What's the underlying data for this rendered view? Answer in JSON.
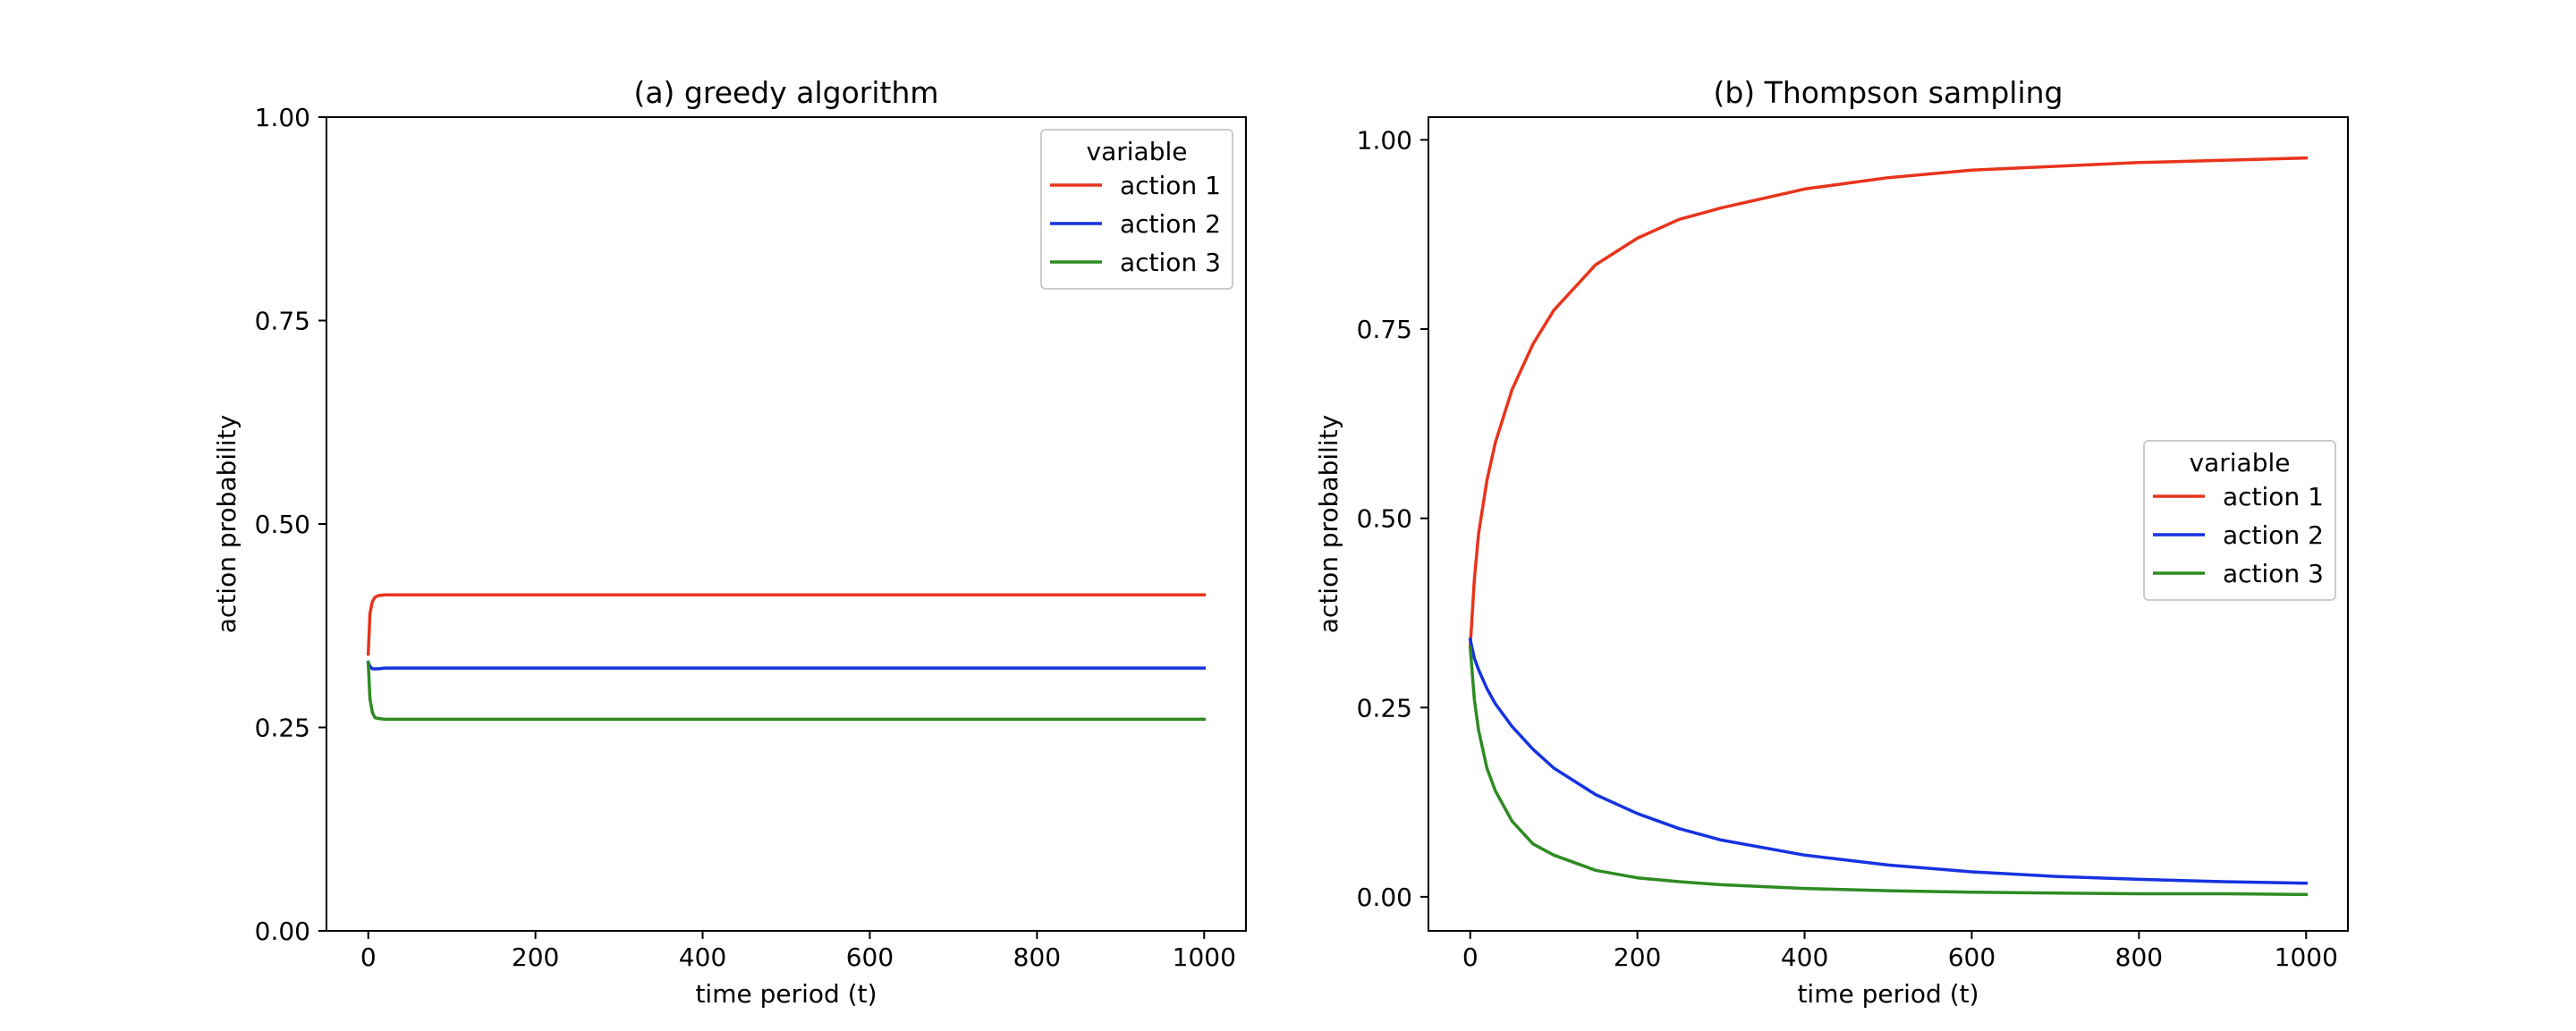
{
  "figure": {
    "panels": [
      {
        "title": "(a) greedy algorithm"
      },
      {
        "title": "(b) Thompson sampling"
      }
    ]
  },
  "chart_data": [
    {
      "type": "line",
      "title": "(a) greedy algorithm",
      "xlabel": "time period (t)",
      "ylabel": "action probability",
      "xlim": [
        -50,
        1050
      ],
      "ylim": [
        0.0,
        1.0
      ],
      "xticks": [
        0,
        200,
        400,
        600,
        800,
        1000
      ],
      "yticks": [
        0.0,
        0.25,
        0.5,
        0.75,
        1.0
      ],
      "ytick_labels": [
        "0.00",
        "0.25",
        "0.50",
        "0.75",
        "1.00"
      ],
      "grid": false,
      "legend": {
        "title": "variable",
        "placement": "top-right"
      },
      "series": [
        {
          "name": "action 1",
          "color": "#e8341c",
          "x": [
            0,
            2,
            5,
            8,
            12,
            20,
            40,
            100,
            1000
          ],
          "y": [
            0.34,
            0.39,
            0.405,
            0.41,
            0.412,
            0.413,
            0.413,
            0.413,
            0.413
          ]
        },
        {
          "name": "action 2",
          "color": "#1533e0",
          "x": [
            0,
            2,
            5,
            8,
            12,
            20,
            40,
            100,
            1000
          ],
          "y": [
            0.33,
            0.325,
            0.322,
            0.322,
            0.322,
            0.323,
            0.323,
            0.323,
            0.323
          ]
        },
        {
          "name": "action 3",
          "color": "#2e8b22",
          "x": [
            0,
            2,
            5,
            8,
            12,
            20,
            40,
            100,
            1000
          ],
          "y": [
            0.33,
            0.285,
            0.268,
            0.262,
            0.261,
            0.26,
            0.26,
            0.26,
            0.26
          ]
        }
      ]
    },
    {
      "type": "line",
      "title": "(b) Thompson sampling",
      "xlabel": "time period (t)",
      "ylabel": "action probability",
      "xlim": [
        -50,
        1050
      ],
      "ylim": [
        -0.045,
        1.03
      ],
      "xticks": [
        0,
        200,
        400,
        600,
        800,
        1000
      ],
      "yticks": [
        0.0,
        0.25,
        0.5,
        0.75,
        1.0
      ],
      "ytick_labels": [
        "0.00",
        "0.25",
        "0.50",
        "0.75",
        "1.00"
      ],
      "grid": false,
      "legend": {
        "title": "variable",
        "placement": "center-right"
      },
      "series": [
        {
          "name": "action 1",
          "color": "#e8341c",
          "x": [
            0,
            5,
            10,
            20,
            30,
            50,
            75,
            100,
            150,
            200,
            250,
            300,
            400,
            500,
            600,
            700,
            800,
            900,
            1000
          ],
          "y": [
            0.33,
            0.42,
            0.48,
            0.55,
            0.6,
            0.67,
            0.73,
            0.775,
            0.835,
            0.87,
            0.895,
            0.91,
            0.935,
            0.95,
            0.96,
            0.965,
            0.97,
            0.973,
            0.976
          ]
        },
        {
          "name": "action 2",
          "color": "#1533e0",
          "x": [
            0,
            5,
            10,
            20,
            30,
            50,
            75,
            100,
            150,
            200,
            250,
            300,
            400,
            500,
            600,
            700,
            800,
            900,
            1000
          ],
          "y": [
            0.34,
            0.315,
            0.3,
            0.275,
            0.255,
            0.225,
            0.195,
            0.17,
            0.135,
            0.11,
            0.09,
            0.075,
            0.055,
            0.042,
            0.033,
            0.027,
            0.023,
            0.02,
            0.018
          ]
        },
        {
          "name": "action 3",
          "color": "#2e8b22",
          "x": [
            0,
            5,
            10,
            20,
            30,
            50,
            75,
            100,
            150,
            200,
            250,
            300,
            400,
            500,
            600,
            700,
            800,
            900,
            1000
          ],
          "y": [
            0.33,
            0.26,
            0.22,
            0.17,
            0.14,
            0.1,
            0.07,
            0.055,
            0.035,
            0.025,
            0.02,
            0.016,
            0.011,
            0.008,
            0.006,
            0.005,
            0.004,
            0.004,
            0.003
          ]
        }
      ]
    }
  ]
}
